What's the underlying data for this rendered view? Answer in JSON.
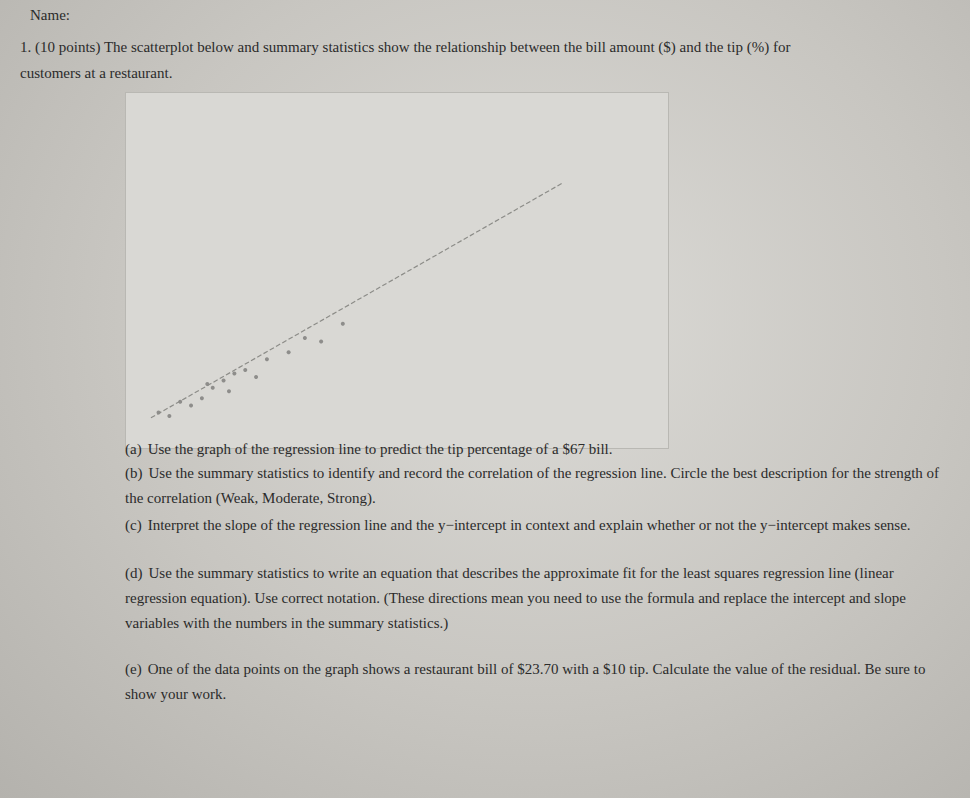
{
  "document": {
    "name_label": "Name:",
    "question": {
      "number": "1.",
      "points": "(10 points)",
      "text": "The scatterplot below and summary statistics show the relationship between the bill amount ($) and the tip (%) for customers at a restaurant."
    },
    "parts": [
      {
        "label": "(a)",
        "text": "Use the graph of the regression line to predict the tip percentage of a $67 bill."
      },
      {
        "label": "(b)",
        "text": "Use the summary statistics to identify and record the correlation of the regression line. Circle the best description for the strength of the correlation (Weak, Moderate, Strong)."
      },
      {
        "label": "(c)",
        "text": "Interpret the slope of the regression line and the y−intercept in context and explain whether or not the y−intercept makes sense."
      },
      {
        "label": "(d)",
        "text": "Use the summary statistics to write an equation that describes the approximate fit for the least squares regression line (linear regression equation). Use correct notation. (These directions mean you need to use the formula and replace the intercept and slope variables with the numbers in the summary statistics.)"
      },
      {
        "label": "(e)",
        "text": "One of the data points on the graph shows a restaurant bill of $23.70 with a $10 tip. Calculate the value of the residual. Be sure to show your work."
      }
    ]
  },
  "chart_data": {
    "type": "scatter",
    "x": [
      6,
      8,
      10,
      12,
      14,
      15,
      16,
      18,
      19,
      20,
      22,
      24,
      26,
      30,
      33,
      36,
      40
    ],
    "y": [
      10,
      9,
      13,
      12,
      14,
      18,
      17,
      19,
      16,
      21,
      22,
      20,
      25,
      27,
      31,
      30,
      35
    ],
    "regression_line": {
      "x": [
        4.6,
        80.5
      ],
      "y": [
        8.5,
        74.6
      ]
    },
    "xlim": [
      0,
      100
    ],
    "ylim": [
      0,
      100
    ],
    "tick_labels": false,
    "grid": false
  }
}
